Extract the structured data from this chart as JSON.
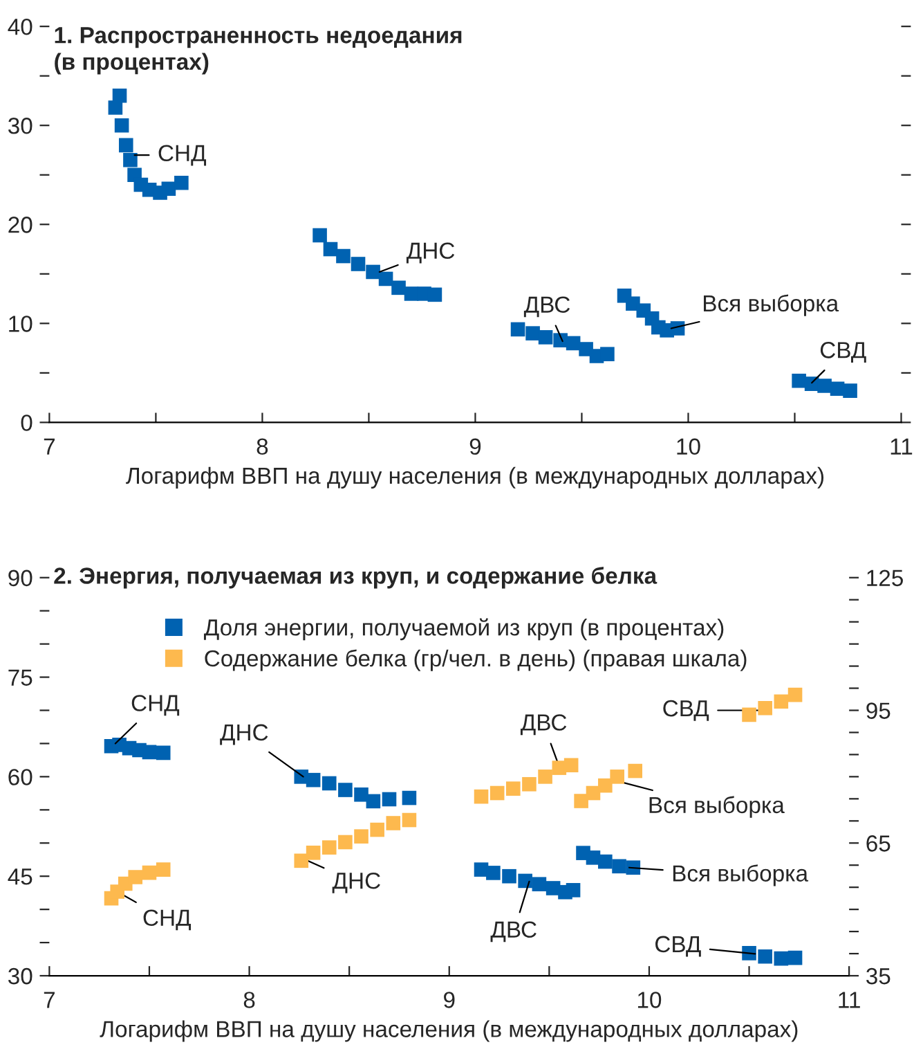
{
  "chart_data": [
    {
      "type": "scatter",
      "title": "1. Распространенность недоедания\n(в процентах)",
      "xlabel": "Логарифм ВВП на душу населения (в международных долларах)",
      "series": [
        {
          "color": "#0062b1",
          "x": [
            7.31,
            7.33,
            7.34,
            7.36,
            7.38,
            7.4,
            7.43,
            7.47,
            7.52,
            7.56,
            7.62,
            8.27,
            8.32,
            8.38,
            8.45,
            8.52,
            8.58,
            8.64,
            8.7,
            8.76,
            8.81,
            9.2,
            9.27,
            9.33,
            9.4,
            9.46,
            9.52,
            9.57,
            9.62,
            9.7,
            9.74,
            9.79,
            9.83,
            9.86,
            9.9,
            9.95,
            10.52,
            10.58,
            10.64,
            10.7,
            10.76
          ],
          "values": [
            31.8,
            33,
            30,
            28,
            26.5,
            25,
            24,
            23.5,
            23.2,
            23.6,
            24.2,
            18.9,
            17.5,
            16.8,
            16,
            15.2,
            14.5,
            13.6,
            13,
            13,
            12.9,
            9.4,
            9.0,
            8.6,
            8.3,
            8.0,
            7.4,
            6.7,
            6.9,
            12.8,
            12,
            11.3,
            10.5,
            9.6,
            9.3,
            9.5,
            4.2,
            3.9,
            3.7,
            3.4,
            3.2
          ]
        }
      ],
      "annotations": [
        {
          "text": "СНД",
          "x": 7.4,
          "y": 27
        },
        {
          "text": "ДНС",
          "x": 8.55,
          "y": 15.2
        },
        {
          "text": "ДВС",
          "x": 9.41,
          "y": 8.2
        },
        {
          "text": "Вся выборка",
          "x": 9.92,
          "y": 9.5
        },
        {
          "text": "СВД",
          "x": 10.58,
          "y": 4.0
        }
      ],
      "xlim": [
        7,
        11
      ],
      "xticks": [
        7,
        {
          "value": 7.5,
          "label": null
        },
        8,
        {
          "value": 8.5,
          "label": null
        },
        9,
        {
          "value": 9.5,
          "label": null
        },
        10,
        {
          "value": 10.5,
          "label": null
        },
        11
      ],
      "ylim": [
        0,
        40
      ],
      "yticks": [
        0,
        {
          "value": 5,
          "label": null
        },
        10,
        {
          "value": 15,
          "label": null
        },
        20,
        {
          "value": 25,
          "label": null
        },
        30,
        {
          "value": 35,
          "label": null
        },
        40
      ],
      "marker": "square",
      "grid": false,
      "legend": false
    },
    {
      "type": "scatter",
      "title": "2. Энергия, получаемая из круп, и содержание белка",
      "xlabel": "Логарифм ВВП на душу населения (в международных долларах)",
      "series": [
        {
          "name": "Доля энергии, получаемой из круп (в процентах)",
          "color": "#0062b1",
          "x": [
            7.31,
            7.35,
            7.4,
            7.45,
            7.5,
            7.57,
            8.26,
            8.32,
            8.4,
            8.48,
            8.56,
            8.62,
            8.7,
            8.8,
            9.16,
            9.22,
            9.3,
            9.38,
            9.45,
            9.52,
            9.58,
            9.62,
            9.67,
            9.72,
            9.78,
            9.85,
            9.92,
            10.5,
            10.58,
            10.66,
            10.73
          ],
          "values": [
            64.6,
            64.8,
            64.3,
            64,
            63.7,
            63.6,
            60,
            59.5,
            59,
            58,
            57.3,
            56.3,
            56.6,
            56.8,
            46,
            45.5,
            45,
            44.3,
            43.8,
            43.2,
            42.6,
            42.9,
            48.5,
            47.8,
            47.2,
            46.5,
            46.3,
            33.4,
            32.9,
            32.6,
            32.7
          ]
        },
        {
          "name": "Содержание белка (гр/чел. в день) (правая шкала)",
          "color": "#fdb94e",
          "axis": "y2",
          "x": [
            7.31,
            7.34,
            7.38,
            7.43,
            7.5,
            7.57,
            8.26,
            8.32,
            8.4,
            8.48,
            8.56,
            8.64,
            8.72,
            8.8,
            9.16,
            9.24,
            9.32,
            9.4,
            9.48,
            9.55,
            9.61,
            9.66,
            9.72,
            9.78,
            9.84,
            9.93,
            10.5,
            10.58,
            10.66,
            10.73
          ],
          "values": [
            52.5,
            54,
            55.8,
            57.3,
            58.3,
            59,
            61,
            62.8,
            64,
            65.2,
            66.5,
            68,
            69.5,
            70.2,
            75.5,
            76.3,
            77.3,
            78.3,
            80,
            82,
            82.6,
            74.5,
            76.3,
            78,
            80,
            81.3,
            94,
            95.5,
            97,
            98.5
          ]
        }
      ],
      "annotations": [
        {
          "text": "СНД",
          "x": 7.33,
          "y": 65
        },
        {
          "text": "СНД",
          "x": 7.35,
          "y": 42.5
        },
        {
          "text": "ДНС",
          "x": 8.27,
          "y": 60
        },
        {
          "text": "ДНС",
          "x": 8.28,
          "y": 47.5
        },
        {
          "text": "ДВС",
          "x": 9.55,
          "y": 61.5
        },
        {
          "text": "ДВС",
          "x": 9.4,
          "y": 44.2
        },
        {
          "text": "Вся выборка",
          "x": 9.82,
          "y": 59.5
        },
        {
          "text": "Вся выборка",
          "x": 9.9,
          "y": 46.3
        },
        {
          "text": "СВД",
          "x": 10.55,
          "y": 70
        },
        {
          "text": "СВД",
          "x": 10.53,
          "y": 33.3
        }
      ],
      "xlim": [
        7,
        11
      ],
      "xticks": [
        7,
        {
          "value": 7.5,
          "label": null
        },
        8,
        {
          "value": 8.5,
          "label": null
        },
        9,
        {
          "value": 9.5,
          "label": null
        },
        10,
        {
          "value": 10.5,
          "label": null
        },
        11
      ],
      "ylim": [
        30,
        90
      ],
      "yticks": [
        30,
        {
          "value": 35,
          "label": null
        },
        {
          "value": 40,
          "label": null
        },
        45,
        {
          "value": 50,
          "label": null
        },
        {
          "value": 55,
          "label": null
        },
        60,
        {
          "value": 65,
          "label": null
        },
        {
          "value": 70,
          "label": null
        },
        75,
        {
          "value": 80,
          "label": null
        },
        {
          "value": 85,
          "label": null
        },
        90
      ],
      "y2lim": [
        35,
        125
      ],
      "y2ticks": [
        35,
        {
          "value": 40,
          "label": null
        },
        {
          "value": 45,
          "label": null
        },
        {
          "value": 50,
          "label": null
        },
        {
          "value": 55,
          "label": null
        },
        {
          "value": 60,
          "label": null
        },
        65,
        {
          "value": 70,
          "label": null
        },
        {
          "value": 75,
          "label": null
        },
        {
          "value": 80,
          "label": null
        },
        {
          "value": 85,
          "label": null
        },
        {
          "value": 90,
          "label": null
        },
        95,
        {
          "value": 100,
          "label": null
        },
        {
          "value": 105,
          "label": null
        },
        {
          "value": 110,
          "label": null
        },
        {
          "value": 115,
          "label": null
        },
        {
          "value": 120,
          "label": null
        },
        125
      ],
      "marker": "square",
      "grid": false,
      "legend": "top"
    }
  ]
}
